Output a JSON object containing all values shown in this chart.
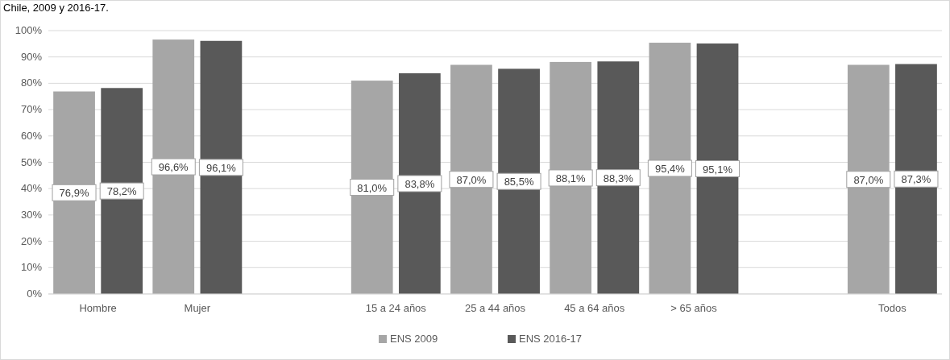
{
  "chart_data": {
    "type": "bar",
    "title": "Chile, 2009 y 2016-17.",
    "categories": [
      "Hombre",
      "Mujer",
      null,
      "15 a 24 años",
      "25 a 44 años",
      "45 a 64 años",
      "> 65 años",
      null,
      "Todos"
    ],
    "series": [
      {
        "name": "ENS 2009",
        "color": "#a6a6a6",
        "values": [
          76.9,
          96.6,
          null,
          81.0,
          87.0,
          88.1,
          95.4,
          null,
          87.0
        ],
        "value_labels": [
          "76,9%",
          "96,6%",
          null,
          "81,0%",
          "87,0%",
          "88,1%",
          "95,4%",
          null,
          "87,0%"
        ]
      },
      {
        "name": "ENS 2016-17",
        "color": "#595959",
        "values": [
          78.2,
          96.1,
          null,
          83.8,
          85.5,
          88.3,
          95.1,
          null,
          87.3
        ],
        "value_labels": [
          "78,2%",
          "96,1%",
          null,
          "83,8%",
          "85,5%",
          "88,3%",
          "95,1%",
          null,
          "87,3%"
        ]
      }
    ],
    "ylim": [
      0,
      100
    ],
    "yticks": [
      {
        "value": 0,
        "label": "0%"
      },
      {
        "value": 10,
        "label": "10%"
      },
      {
        "value": 20,
        "label": "20%"
      },
      {
        "value": 30,
        "label": "30%"
      },
      {
        "value": 40,
        "label": "40%"
      },
      {
        "value": 50,
        "label": "50%"
      },
      {
        "value": 60,
        "label": "60%"
      },
      {
        "value": 70,
        "label": "70%"
      },
      {
        "value": 80,
        "label": "80%"
      },
      {
        "value": 90,
        "label": "90%"
      },
      {
        "value": 100,
        "label": "100%"
      }
    ],
    "grid": "y",
    "legend": "bottom"
  }
}
